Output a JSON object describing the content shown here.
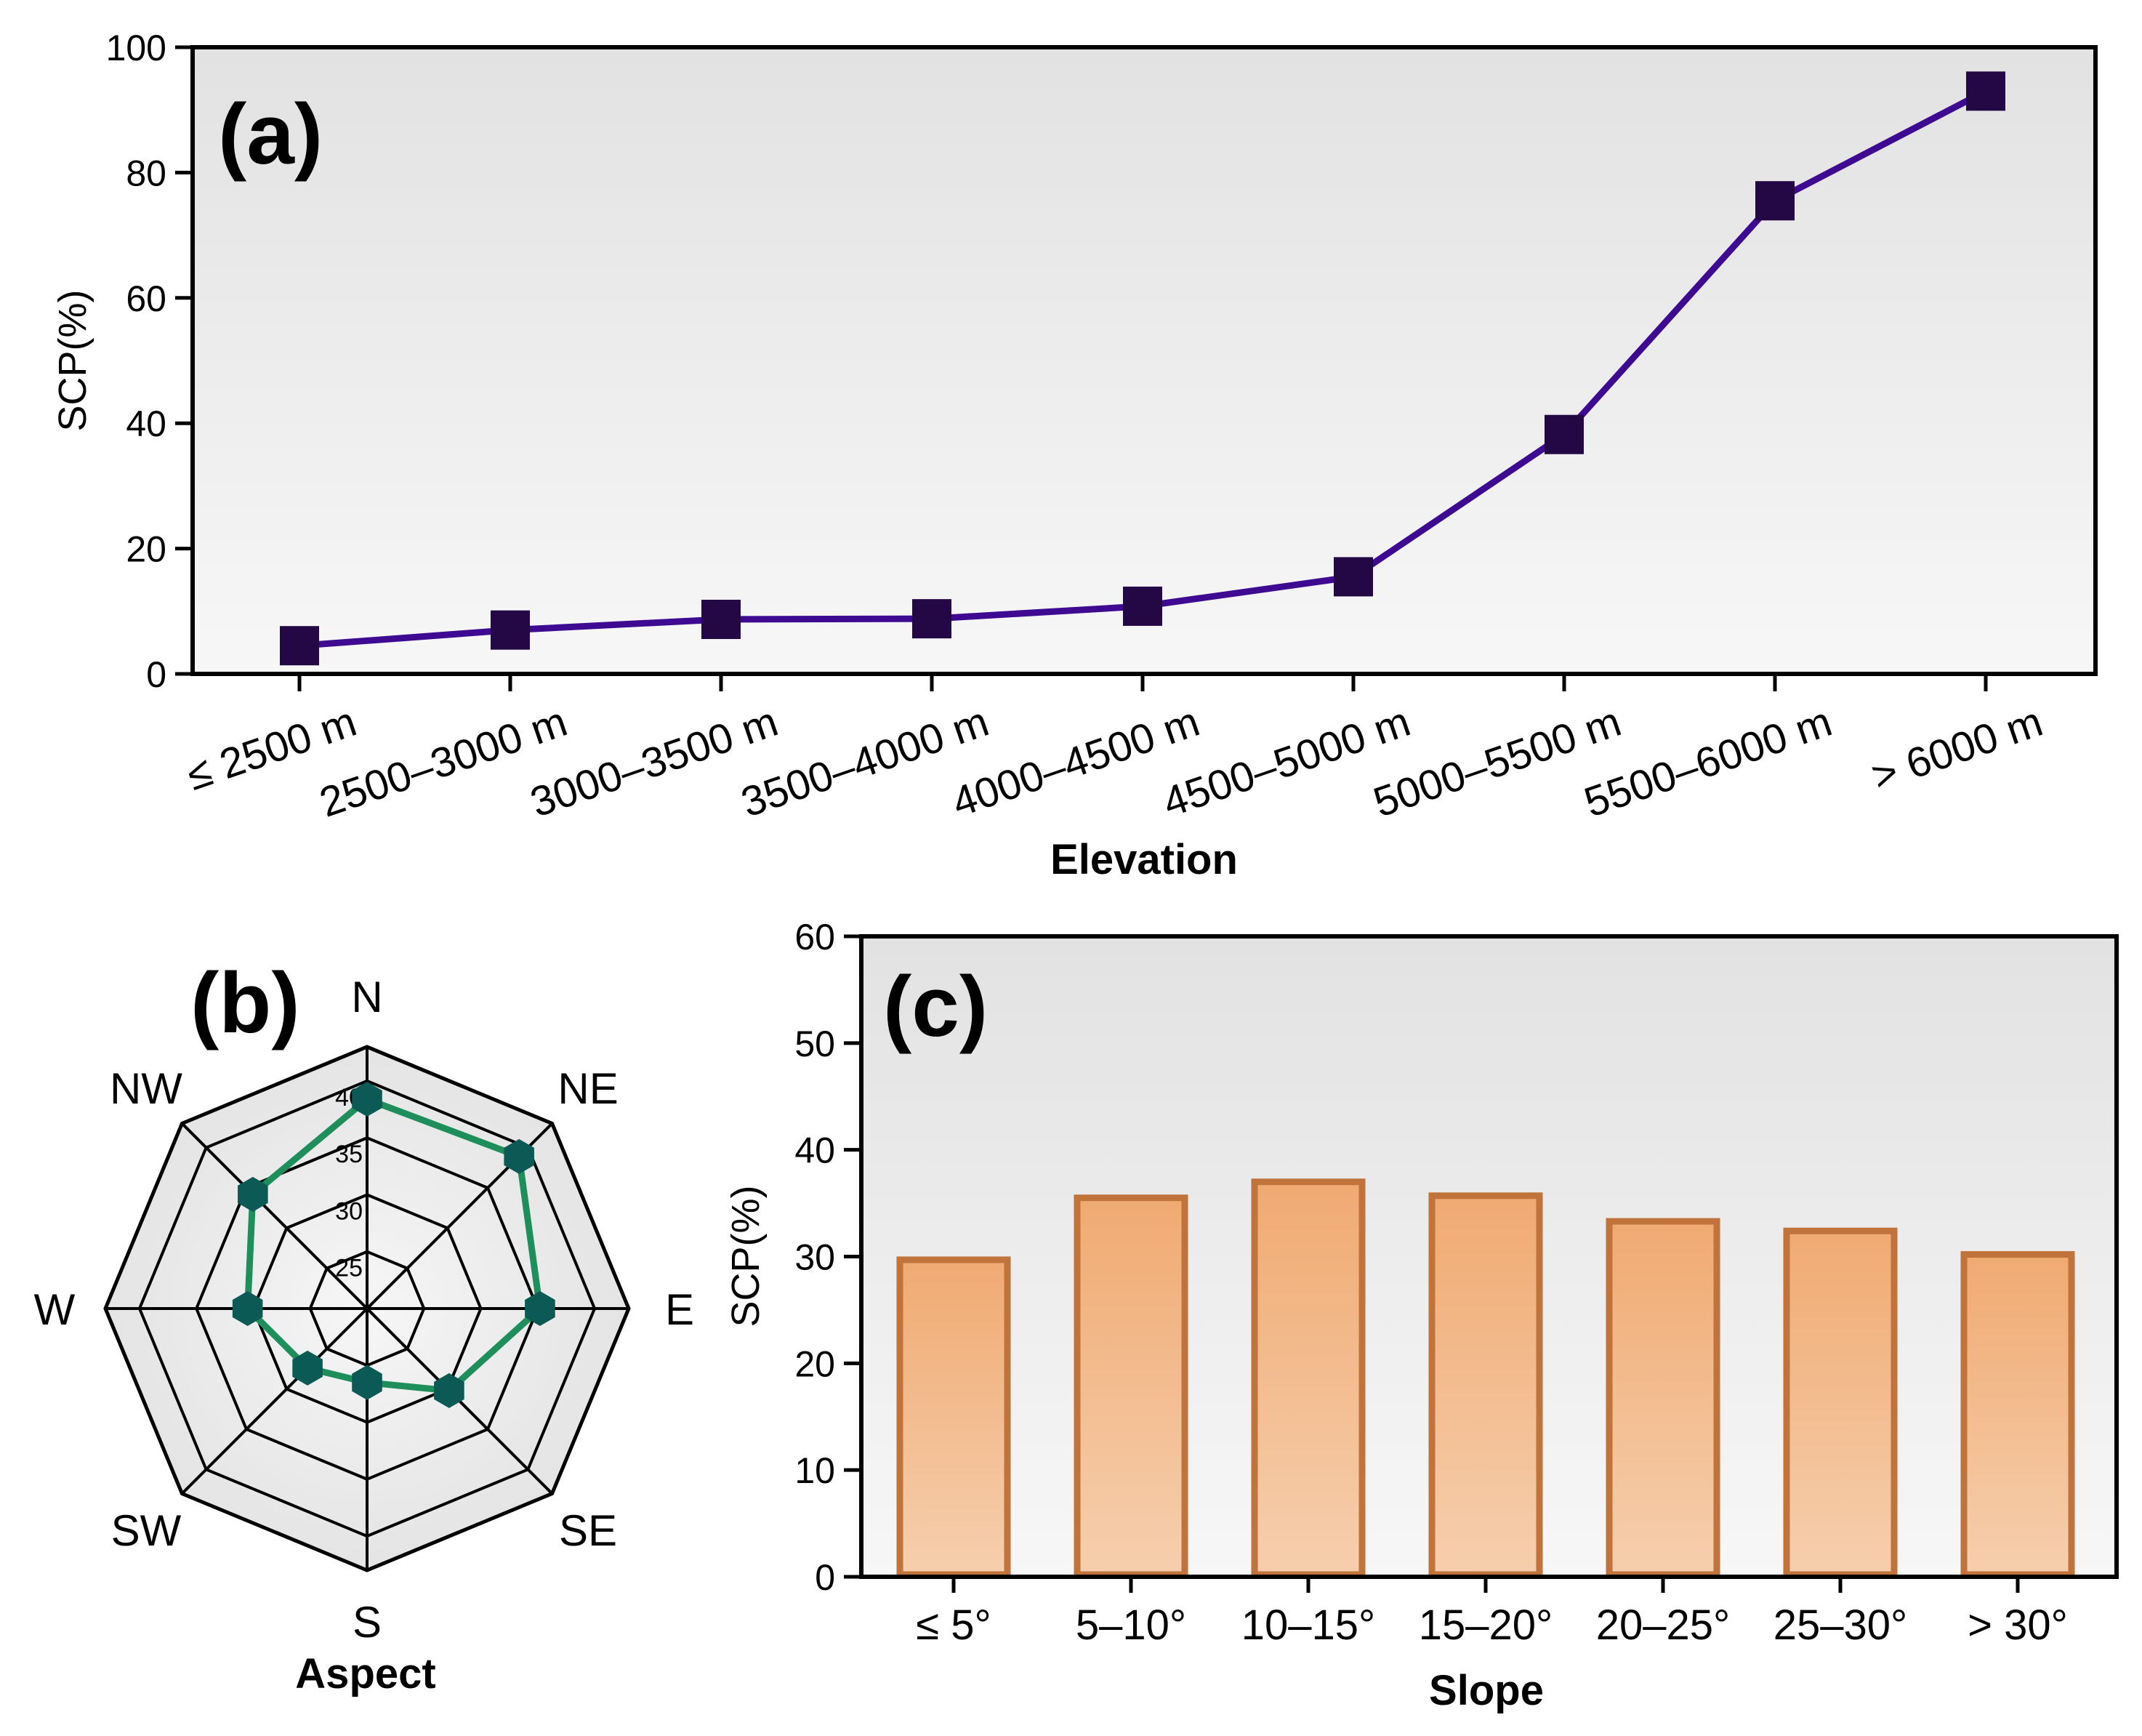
{
  "chart_data": [
    {
      "type": "line",
      "panel_label": "(a)",
      "xlabel": "Elevation",
      "ylabel": "SCP(%)",
      "ylim": [
        0,
        100
      ],
      "yticks": [
        0,
        20,
        40,
        60,
        80,
        100
      ],
      "categories": [
        "≤ 2500 m",
        "2500–3000 m",
        "3000–3500 m",
        "3500–4000 m",
        "4000–4500 m",
        "4500–5000 m",
        "5000–5500 m",
        "5500–6000 m",
        "> 6000 m"
      ],
      "values": [
        4.5,
        7,
        8.7,
        8.8,
        10.8,
        15.5,
        38.2,
        75.5,
        93
      ],
      "color": "#3d0a91",
      "marker_color": "#240845"
    },
    {
      "type": "radar",
      "panel_label": "(b)",
      "xlabel": "Aspect",
      "directions": [
        "N",
        "NE",
        "E",
        "SE",
        "S",
        "SW",
        "W",
        "NW"
      ],
      "values": [
        38.4,
        38.9,
        35.2,
        30.2,
        26.5,
        27.4,
        30.5,
        34.2
      ],
      "rings": [
        25,
        30,
        35,
        40
      ],
      "range": [
        20,
        43
      ],
      "line_color": "#1e8f5a",
      "marker_color": "#0b5a56"
    },
    {
      "type": "bar",
      "panel_label": "(c)",
      "xlabel": "Slope",
      "ylabel": "SCP(%)",
      "ylim": [
        0,
        60
      ],
      "yticks": [
        0,
        10,
        20,
        30,
        40,
        50,
        60
      ],
      "categories": [
        "≤ 5°",
        "5–10°",
        "10–15°",
        "15–20°",
        "20–25°",
        "25–30°",
        "> 30°"
      ],
      "values": [
        29.7,
        35.5,
        37,
        35.7,
        33.3,
        32.4,
        30.2
      ],
      "fill_top": "#f0aa72",
      "fill_bottom": "#f6cfae",
      "edge_color": "#c0733a"
    }
  ]
}
